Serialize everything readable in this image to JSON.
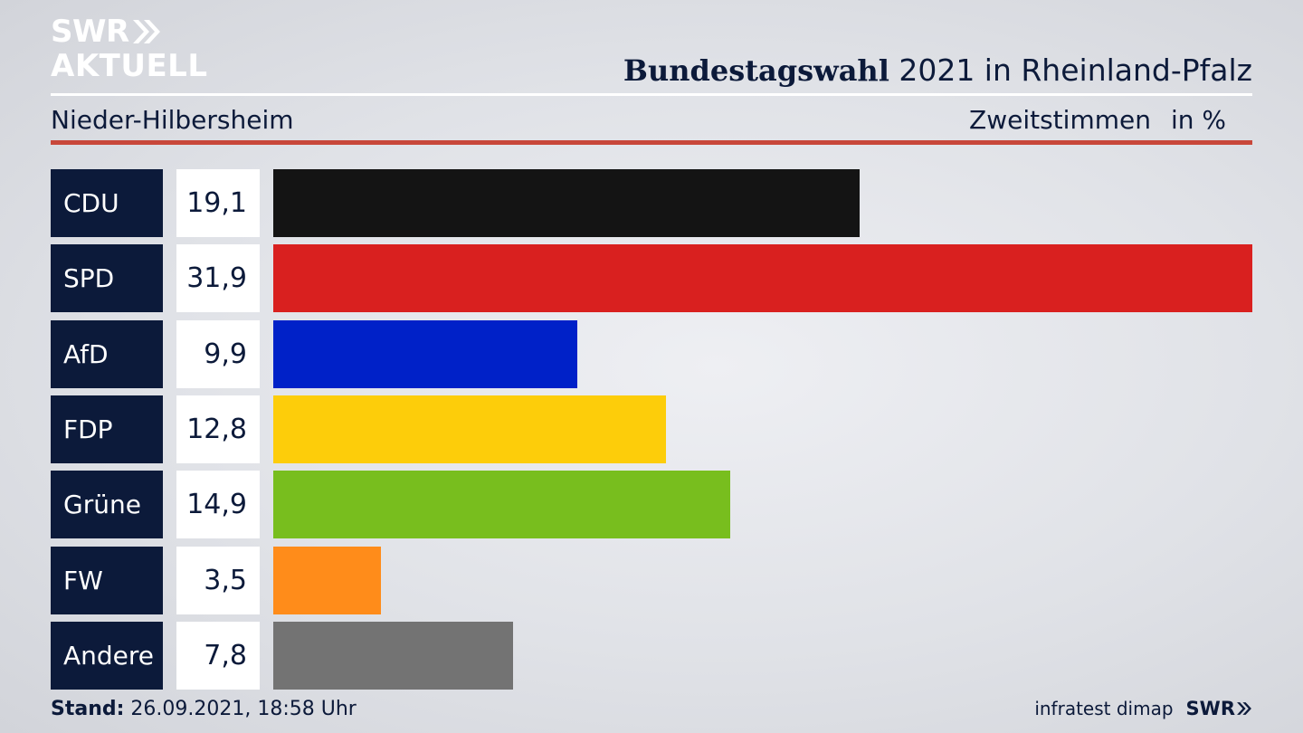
{
  "brand": {
    "line1": "SWR",
    "line2": "AKTUELL",
    "footer_brand": "SWR",
    "color": "#ffffff"
  },
  "header": {
    "title_bold": "Bundestagswahl",
    "title_rest": " 2021 in Rheinland-Pfalz",
    "region": "Nieder-Hilbersheim",
    "measure": "Zweitstimmen",
    "unit": "in %"
  },
  "colors": {
    "navy": "#0c1a3a",
    "accent_rule": "#c8473a"
  },
  "chart_data": {
    "type": "bar",
    "orientation": "horizontal",
    "categories": [
      "CDU",
      "SPD",
      "AfD",
      "FDP",
      "Grüne",
      "FW",
      "Andere"
    ],
    "values": [
      19.1,
      31.9,
      9.9,
      12.8,
      14.9,
      3.5,
      7.8
    ],
    "value_labels": [
      "19,1",
      "31,9",
      "9,9",
      "12,8",
      "14,9",
      "3,5",
      "7,8"
    ],
    "bar_colors": [
      "#141414",
      "#d9201f",
      "#0021c8",
      "#fdcd0a",
      "#78be1e",
      "#ff8c1a",
      "#737373"
    ],
    "xlim": [
      0,
      31.9
    ],
    "title": "Bundestagswahl 2021 in Rheinland-Pfalz",
    "subtitle": "Nieder-Hilbersheim",
    "xlabel": "Zweitstimmen in %",
    "ylabel": "",
    "grid": false,
    "legend": "none"
  },
  "footer": {
    "stand_label": "Stand:",
    "stand_value": " 26.09.2021, 18:58 Uhr",
    "source": "infratest dimap"
  }
}
